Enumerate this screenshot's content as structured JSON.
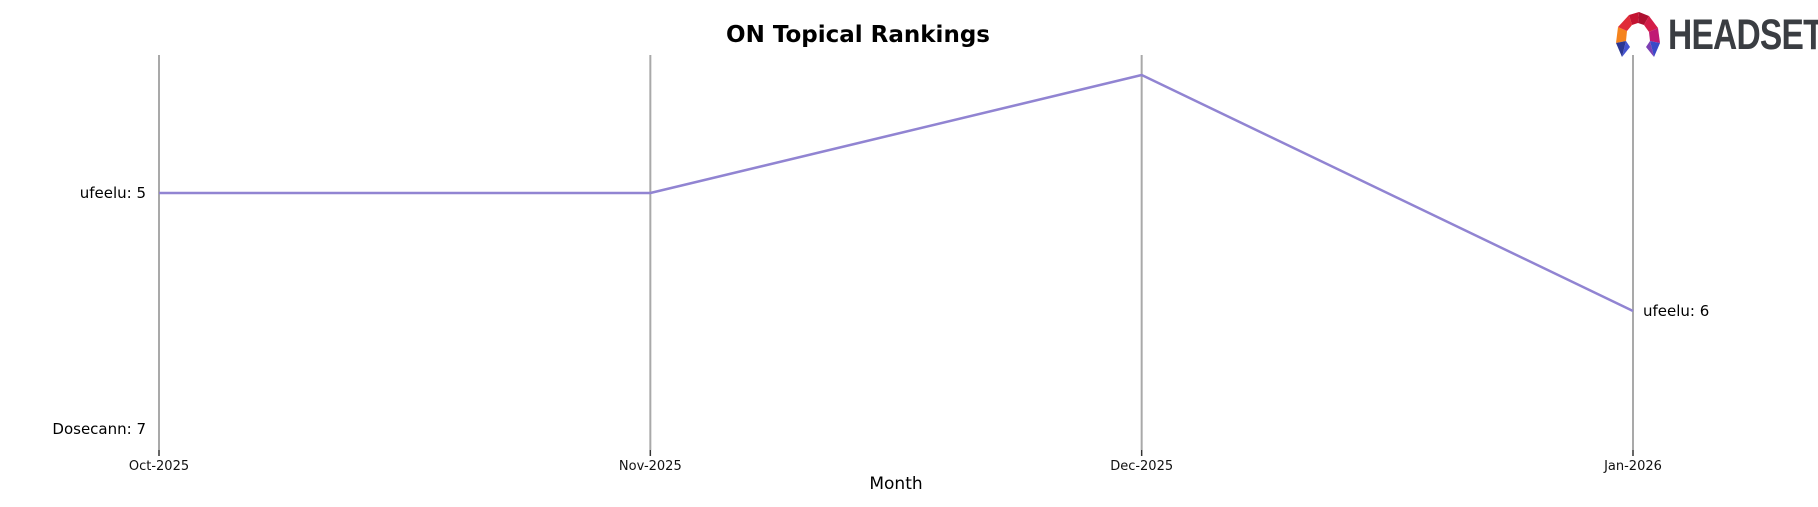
{
  "page": {
    "background": "#ffffff"
  },
  "logo": {
    "brand": "HEADSET",
    "text_color": "#3a3d42",
    "icon_colors": {
      "orange": "#f5831d",
      "red": "#e02c38",
      "dark_red": "#ad1030",
      "crimson": "#d41d48",
      "magenta": "#c01a74",
      "purple": "#7c3fb4",
      "blue": "#4453d0",
      "navy": "#2c3794"
    }
  },
  "chart_data": {
    "type": "line",
    "title": "ON Topical Rankings",
    "xlabel": "Month",
    "ylabel": "",
    "categories": [
      "Oct-2025",
      "Nov-2025",
      "Dec-2025",
      "Jan-2026"
    ],
    "series": [
      {
        "name": "ufeelu",
        "values": [
          5,
          5,
          4,
          6
        ],
        "color": "#9184d2",
        "start_label": "ufeelu: 5",
        "end_label": "ufeelu: 6"
      },
      {
        "name": "Dosecann",
        "values": [
          7,
          null,
          null,
          null
        ],
        "color": "#9184d2",
        "start_label": "Dosecann: 7",
        "end_label": null
      }
    ],
    "y_axis": {
      "inverted": true,
      "ticks_hidden": true,
      "range_visible": [
        3.8,
        7.2
      ]
    },
    "grid": {
      "vertical": true,
      "horizontal": false,
      "color": "#a9a9a9"
    },
    "tick_color": "#333333",
    "legend": "inline-endpoint-labels"
  }
}
